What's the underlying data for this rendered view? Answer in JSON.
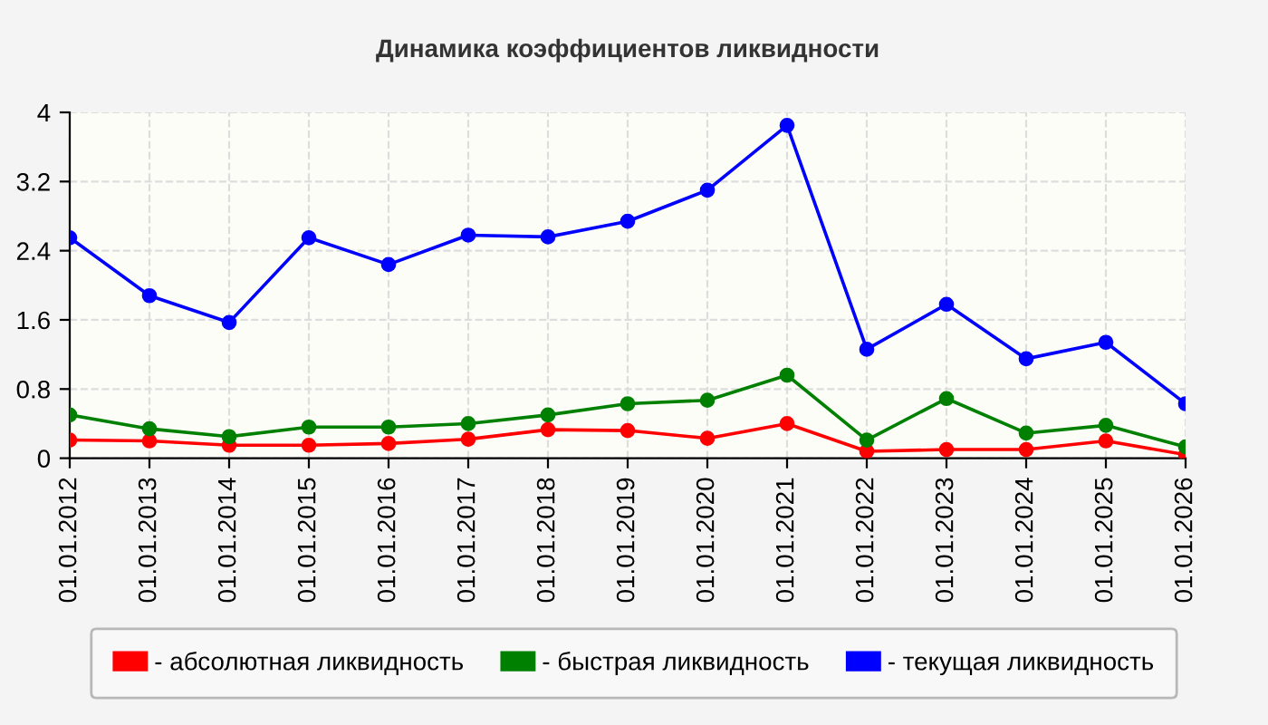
{
  "chart_data": {
    "type": "line",
    "title": "Динамика коэффициентов ликвидности",
    "categories": [
      "01.01.2012",
      "01.01.2013",
      "01.01.2014",
      "01.01.2015",
      "01.01.2016",
      "01.01.2017",
      "01.01.2018",
      "01.01.2019",
      "01.01.2020",
      "01.01.2021",
      "01.01.2022",
      "01.01.2023",
      "01.01.2024",
      "01.01.2025",
      "01.01.2026"
    ],
    "series": [
      {
        "name": "- абсолютная ликвидность",
        "color": "#ff0000",
        "values": [
          0.21,
          0.2,
          0.15,
          0.15,
          0.17,
          0.22,
          0.33,
          0.32,
          0.23,
          0.4,
          0.08,
          0.1,
          0.1,
          0.2,
          0.04
        ]
      },
      {
        "name": "- быстрая ликвидность",
        "color": "#008000",
        "values": [
          0.5,
          0.34,
          0.25,
          0.36,
          0.36,
          0.4,
          0.5,
          0.63,
          0.67,
          0.96,
          0.21,
          0.69,
          0.29,
          0.38,
          0.13
        ]
      },
      {
        "name": "- текущая ликвидность",
        "color": "#0000ff",
        "values": [
          2.55,
          1.88,
          1.57,
          2.55,
          2.24,
          2.58,
          2.56,
          2.74,
          3.1,
          3.85,
          1.26,
          1.78,
          1.15,
          1.34,
          0.63
        ]
      }
    ],
    "ylim": [
      0,
      4
    ],
    "yticks": [
      0,
      0.8,
      1.6,
      2.4,
      3.2,
      4
    ],
    "grid": true,
    "legend": "bottom",
    "marker": "circle",
    "line_style": "solid"
  }
}
